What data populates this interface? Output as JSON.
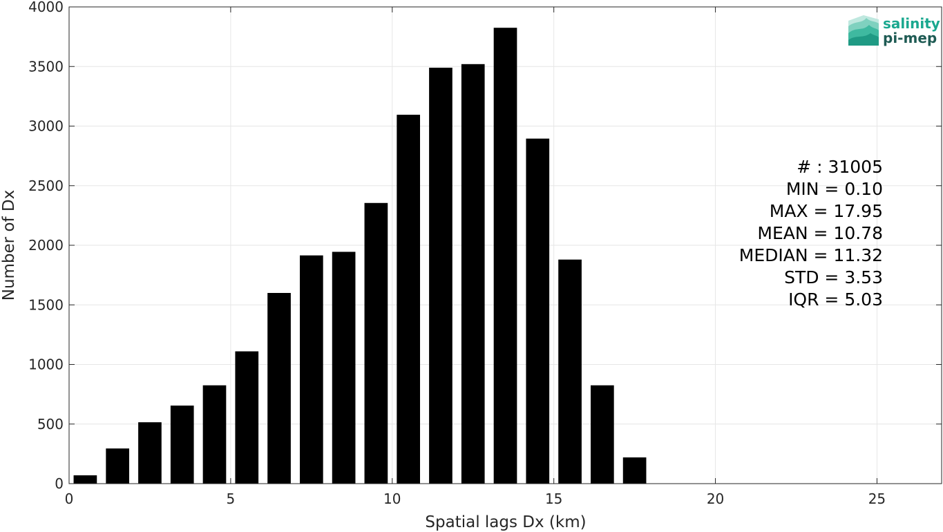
{
  "chart_data": {
    "type": "bar",
    "x": [
      0.5,
      1.5,
      2.5,
      3.5,
      4.5,
      5.5,
      6.5,
      7.5,
      8.5,
      9.5,
      10.5,
      11.5,
      12.5,
      13.5,
      14.5,
      15.5,
      16.5,
      17.5
    ],
    "values": [
      70,
      295,
      515,
      655,
      825,
      1110,
      1600,
      1915,
      1945,
      2355,
      3095,
      3490,
      3520,
      3825,
      2895,
      1880,
      825,
      220
    ],
    "bar_width": 0.72,
    "xlabel": "Spatial lags Dx (km)",
    "ylabel": "Number of Dx",
    "xlim": [
      0,
      27
    ],
    "ylim": [
      0,
      4000
    ],
    "xticks": [
      0,
      5,
      10,
      15,
      20,
      25
    ],
    "yticks": [
      0,
      500,
      1000,
      1500,
      2000,
      2500,
      3000,
      3500,
      4000
    ],
    "grid": true,
    "bar_color": "#000000",
    "grid_color": "#e6e6e6"
  },
  "stats": {
    "lines": [
      "# : 31005",
      "MIN = 0.10",
      "MAX =  17.95",
      "MEAN = 10.78",
      "MEDIAN = 11.32",
      "STD = 3.53",
      "IQR = 5.03"
    ]
  },
  "logo": {
    "line1": "salinity",
    "line2": "pi-mep",
    "color_primary": "#1aa88f",
    "color_dark": "#1f5b54"
  }
}
